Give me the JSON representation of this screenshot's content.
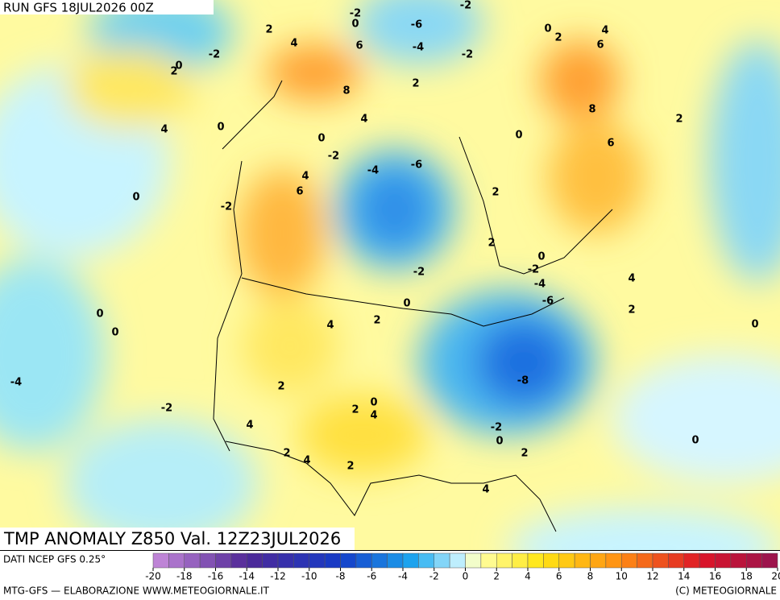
{
  "header": {
    "run": "RUN GFS 18JUL2026 00Z",
    "title": "TMP ANOMALY Z850 Val. 12Z23JUL2026"
  },
  "footer": {
    "source": "DATI NCEP GFS 0.25°",
    "credit": "MTG-GFS — ELABORAZIONE WWW.METEOGIORNALE.IT",
    "copyright": "(C) METEOGIORNALE"
  },
  "colorbar": {
    "lim": [
      -20,
      20
    ],
    "ticks": [
      -20,
      -18,
      -16,
      -14,
      -12,
      -10,
      -8,
      -6,
      -4,
      -2,
      0,
      2,
      4,
      6,
      8,
      10,
      12,
      14,
      16,
      18,
      20
    ]
  },
  "contour_labels": [
    -2,
    0,
    -6,
    -2,
    2,
    4,
    6,
    -4,
    -2,
    0,
    2,
    4,
    6,
    -2,
    0,
    2,
    8,
    2,
    4,
    8,
    2,
    4,
    0,
    0,
    0,
    -2,
    6,
    -4,
    -6,
    4,
    6,
    2,
    0,
    -2,
    2,
    0,
    -2,
    -4,
    4,
    -2,
    -6,
    0,
    2,
    0,
    2,
    4,
    0,
    0,
    -4,
    -8,
    2,
    0,
    -2,
    2,
    4,
    -2,
    4,
    0,
    0,
    2,
    4,
    2,
    2,
    4
  ]
}
